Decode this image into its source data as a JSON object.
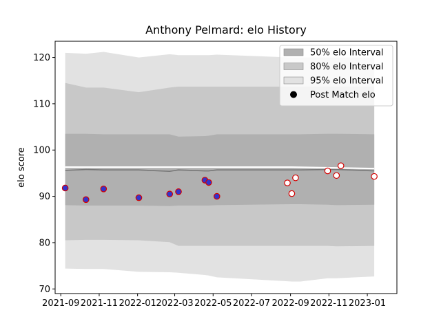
{
  "chart_data": {
    "type": "line",
    "title": "Anthony Pelmard: elo History",
    "xlabel": "",
    "ylabel": "elo score",
    "xlim": [
      "2021-08-23",
      "2023-02-17"
    ],
    "ylim": [
      69,
      123.5
    ],
    "x_ticks": [
      "2021-09-01",
      "2021-11-01",
      "2022-01-01",
      "2022-03-01",
      "2022-05-01",
      "2022-07-01",
      "2022-09-01",
      "2022-11-01",
      "2023-01-01"
    ],
    "x_tick_labels": [
      "2021-09",
      "2021-11",
      "2022-01",
      "2022-03",
      "2022-05",
      "2022-07",
      "2022-09",
      "2022-11",
      "2023-01"
    ],
    "y_ticks": [
      70,
      80,
      90,
      100,
      110,
      120
    ],
    "grid": false,
    "legend_position": "top-right",
    "legend": [
      {
        "label": "50% elo Interval",
        "kind": "patch",
        "color": "#b0b0b0"
      },
      {
        "label": "80% elo Interval",
        "kind": "patch",
        "color": "#c8c8c8"
      },
      {
        "label": "95% elo Interval",
        "kind": "patch",
        "color": "#e2e2e2"
      },
      {
        "label": "Post Match elo",
        "kind": "marker",
        "color": "#000000"
      }
    ],
    "band_x": [
      "2021-09-08",
      "2021-10-11",
      "2021-11-08",
      "2022-01-03",
      "2022-02-21",
      "2022-03-07",
      "2022-04-18",
      "2022-04-24",
      "2022-05-07",
      "2022-09-03",
      "2022-09-17",
      "2022-10-30",
      "2022-11-13",
      "2023-01-12"
    ],
    "bands": {
      "95": {
        "upper": [
          121.0,
          120.8,
          121.2,
          120.0,
          120.7,
          120.5,
          120.5,
          120.5,
          120.6,
          120.0,
          120.0,
          120.0,
          120.0,
          120.0
        ],
        "lower": [
          74.4,
          74.3,
          74.3,
          73.7,
          73.6,
          73.5,
          73.0,
          72.9,
          72.5,
          71.6,
          71.6,
          72.3,
          72.3,
          72.7
        ]
      },
      "80": {
        "upper": [
          114.5,
          113.5,
          113.5,
          112.5,
          113.5,
          113.7,
          113.7,
          113.7,
          113.7,
          113.7,
          113.7,
          113.7,
          113.7,
          113.7
        ],
        "lower": [
          80.5,
          80.6,
          80.6,
          80.5,
          80.1,
          79.3,
          79.3,
          79.3,
          79.3,
          79.3,
          79.3,
          79.3,
          79.2,
          79.3
        ]
      },
      "50": {
        "upper": [
          103.5,
          103.5,
          103.4,
          103.4,
          103.4,
          102.9,
          103.0,
          103.1,
          103.4,
          103.4,
          103.4,
          103.5,
          103.5,
          103.4
        ],
        "lower": [
          88.1,
          88.0,
          88.0,
          88.0,
          87.9,
          88.0,
          88.0,
          88.0,
          88.1,
          88.3,
          88.3,
          88.2,
          88.1,
          88.2
        ]
      }
    },
    "series": [
      {
        "kind": "mean_line",
        "color": "#777777",
        "x": [
          "2021-09-08",
          "2021-10-11",
          "2021-11-08",
          "2022-01-03",
          "2022-02-21",
          "2022-03-07",
          "2022-04-18",
          "2022-04-24",
          "2022-05-07",
          "2022-09-03",
          "2022-09-17",
          "2022-10-30",
          "2022-11-13",
          "2023-01-12"
        ],
        "values": [
          95.6,
          95.8,
          95.7,
          95.7,
          95.4,
          95.7,
          95.5,
          95.5,
          95.7,
          95.7,
          95.7,
          95.8,
          95.8,
          95.5
        ]
      },
      {
        "kind": "upper_line",
        "color": "#ffffff",
        "x": [
          "2021-09-08",
          "2022-03-07",
          "2022-09-03",
          "2023-01-12"
        ],
        "values": [
          96.3,
          96.3,
          96.3,
          96.0
        ]
      },
      {
        "name": "Post Match elo",
        "kind": "points",
        "x": [
          "2021-09-08",
          "2021-10-11",
          "2021-11-08",
          "2022-01-03",
          "2022-02-21",
          "2022-03-07",
          "2022-04-18",
          "2022-04-24",
          "2022-05-07",
          "2022-08-27",
          "2022-09-03",
          "2022-09-09",
          "2022-10-30",
          "2022-11-13",
          "2022-11-20",
          "2023-01-12"
        ],
        "values": [
          91.8,
          89.3,
          91.6,
          89.7,
          90.5,
          91.0,
          93.5,
          93.0,
          90.0,
          92.9,
          90.6,
          94.0,
          95.5,
          94.5,
          96.6,
          94.3
        ],
        "fill": [
          "#3333cc",
          "#3333cc",
          "#3333cc",
          "#3333cc",
          "#3333cc",
          "#3333cc",
          "#3333cc",
          "#3333cc",
          "#3333cc",
          "#ffffff",
          "#ffffff",
          "#ffffff",
          "#ffffff",
          "#ffffff",
          "#ffffff",
          "#ffffff"
        ],
        "edge": "#d40000"
      }
    ]
  }
}
